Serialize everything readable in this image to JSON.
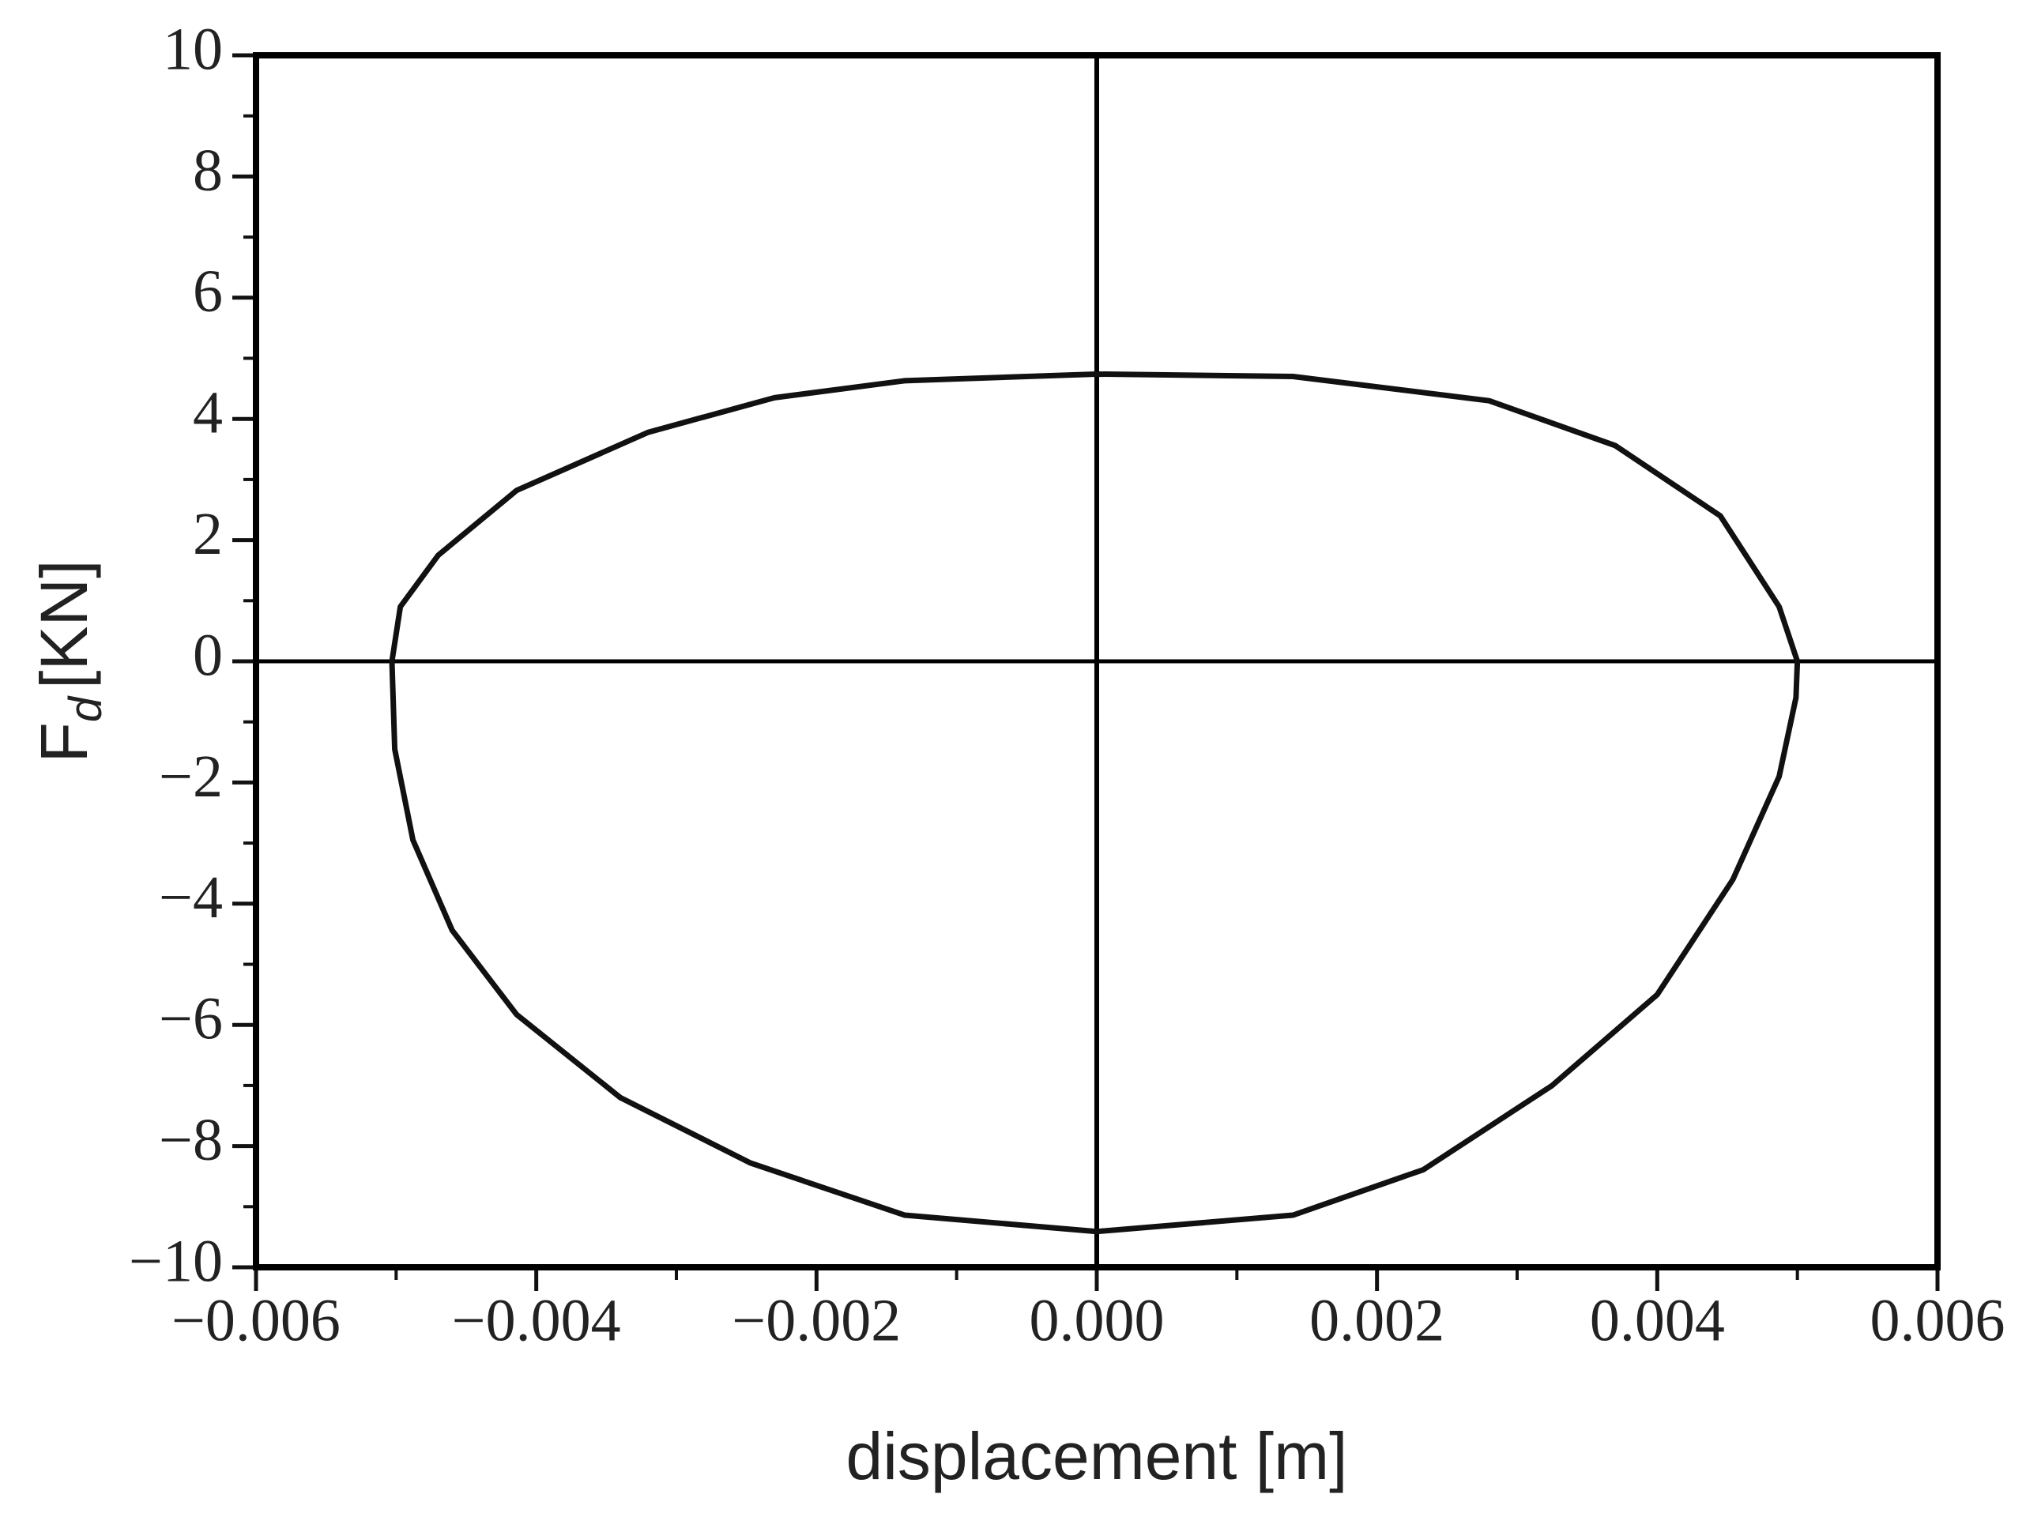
{
  "chart_data": {
    "type": "line",
    "xlabel": "displacement [m]",
    "ylabel": {
      "main": "F",
      "sub": "d",
      "unit": "[KN]"
    },
    "xlim": [
      -0.006,
      0.006
    ],
    "ylim": [
      -10,
      10
    ],
    "xticks": [
      {
        "value": -0.006,
        "label": "−0.006"
      },
      {
        "value": -0.004,
        "label": "−0.004"
      },
      {
        "value": -0.002,
        "label": "−0.002"
      },
      {
        "value": 0,
        "label": "0.000"
      },
      {
        "value": 0.002,
        "label": "0.002"
      },
      {
        "value": 0.004,
        "label": "0.004"
      },
      {
        "value": 0.006,
        "label": "0.006"
      }
    ],
    "yticks": [
      {
        "value": -10,
        "label": "−10"
      },
      {
        "value": -8,
        "label": "−8"
      },
      {
        "value": -6,
        "label": "−6"
      },
      {
        "value": -4,
        "label": "−4"
      },
      {
        "value": -2,
        "label": "−2"
      },
      0,
      2,
      4,
      6,
      8,
      10
    ],
    "series": [
      {
        "color": "#111111",
        "x": [
          0.005,
          0.00487,
          0.00445,
          0.0037,
          0.0028,
          0.0014,
          0,
          -0.00137,
          -0.0023,
          -0.0032,
          -0.00414,
          -0.0047,
          -0.00497,
          -0.00503,
          -0.00501,
          -0.00488,
          -0.0046,
          -0.00414,
          -0.0034,
          -0.00247,
          -0.00137,
          0,
          0.0014,
          0.00233,
          0.00325,
          0.004,
          0.00454,
          0.00487,
          0.00499,
          0.005
        ],
        "values": [
          0,
          0.9,
          2.4,
          3.56,
          4.3,
          4.7,
          4.74,
          4.63,
          4.35,
          3.78,
          2.82,
          1.75,
          0.9,
          0,
          -1.45,
          -2.95,
          -4.44,
          -5.83,
          -7.2,
          -8.28,
          -9.14,
          -9.41,
          -9.14,
          -8.39,
          -7.0,
          -5.5,
          -3.6,
          -1.9,
          -0.6,
          0
        ]
      }
    ]
  }
}
